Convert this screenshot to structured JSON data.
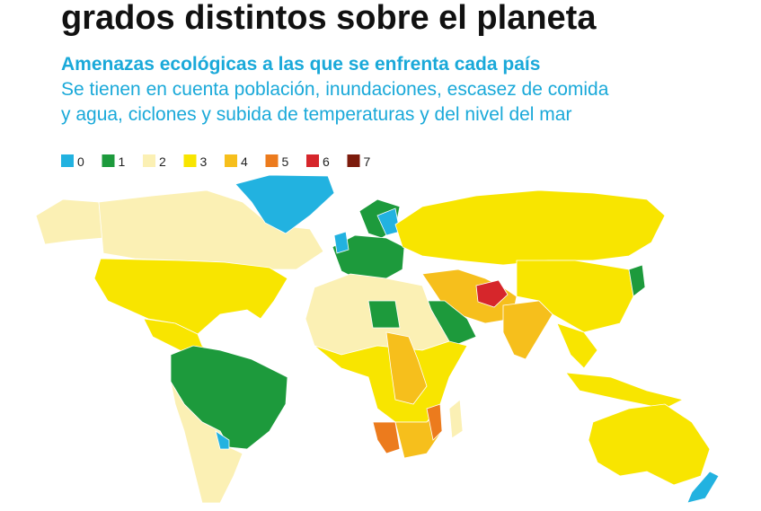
{
  "header": {
    "title": "grados distintos sobre el planeta",
    "subtitle": "Amenazas ecológicas a las que se enfrenta cada país",
    "description_lines": [
      "Se tienen en cuenta población, inundaciones, escasez de comida",
      "y agua, ciclones y subida de temperaturas y del nivel del mar"
    ]
  },
  "legend": {
    "items": [
      {
        "label": 0,
        "color": "#22b2e0"
      },
      {
        "label": 1,
        "color": "#1d9a3c"
      },
      {
        "label": 2,
        "color": "#fbf0b4"
      },
      {
        "label": 3,
        "color": "#f8e500"
      },
      {
        "label": 4,
        "color": "#f6bf1c"
      },
      {
        "label": 5,
        "color": "#ec7b1d"
      },
      {
        "label": 6,
        "color": "#d6262b"
      },
      {
        "label": 7,
        "color": "#7c1b0c"
      }
    ]
  }
}
